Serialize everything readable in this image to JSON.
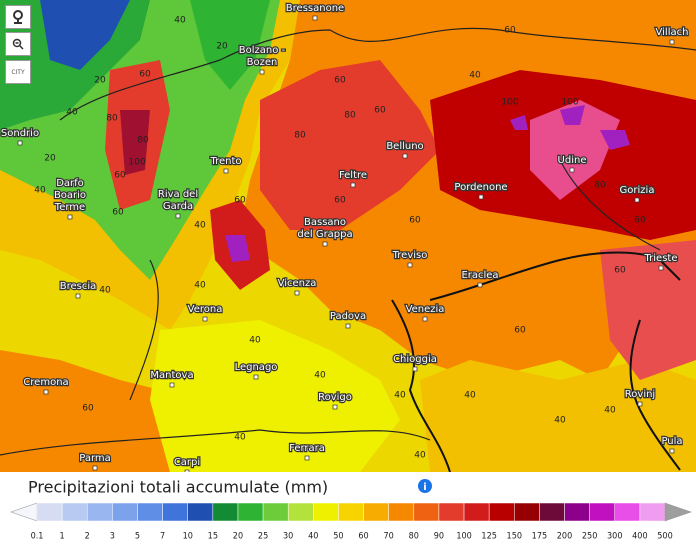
{
  "cities": [
    [
      "Bressanone"
    ],
    [
      "Villach"
    ],
    [
      "Bolzano -",
      "Bozen"
    ],
    [
      "Sondrio"
    ],
    [
      "Trento"
    ],
    [
      "Belluno"
    ],
    [
      "Udine"
    ],
    [
      "Gorizia"
    ],
    [
      "Pordenone"
    ],
    [
      "Feltre"
    ],
    [
      "Darfo",
      "Boario",
      "Terme"
    ],
    [
      "Riva del",
      "Garda"
    ],
    [
      "Bassano",
      "del Grappa"
    ],
    [
      "Treviso"
    ],
    [
      "Eraclea"
    ],
    [
      "Trieste"
    ],
    [
      "Brescia"
    ],
    [
      "Verona"
    ],
    [
      "Vicenza"
    ],
    [
      "Padova"
    ],
    [
      "Venezia"
    ],
    [
      "Chioggia"
    ],
    [
      "Legnago"
    ],
    [
      "Mantova"
    ],
    [
      "Cremona"
    ],
    [
      "Rovigo"
    ],
    [
      "Rovinj"
    ],
    [
      "Ferrara"
    ],
    [
      "Pula"
    ],
    [
      "Parma"
    ],
    [
      "Carpi"
    ]
  ],
  "contour_labels": [
    40,
    20,
    20,
    60,
    40,
    40,
    20,
    80,
    60,
    60,
    80,
    100,
    60,
    80,
    60,
    80,
    100,
    100,
    60,
    40,
    60,
    60,
    60,
    40,
    80,
    60,
    60,
    40,
    40,
    40,
    40,
    40,
    40,
    40,
    40,
    40,
    60,
    40,
    60
  ],
  "legend": {
    "title": "Precipitazioni totali accumulate (mm)",
    "ticks": [
      0.1,
      1,
      2,
      3,
      5,
      7,
      10,
      15,
      20,
      25,
      30,
      40,
      50,
      60,
      70,
      80,
      90,
      100,
      125,
      150,
      175,
      200,
      250,
      300,
      400,
      500
    ],
    "colors": [
      "#d6dcf2",
      "#b8caf2",
      "#9ab6f0",
      "#7ca2ec",
      "#5e8ee6",
      "#3f74da",
      "#1f4fb0",
      "#138a34",
      "#2fb332",
      "#6ccc3a",
      "#b4e23c",
      "#eef000",
      "#f6d400",
      "#f6ac00",
      "#f68800",
      "#ef6212",
      "#e43c2c",
      "#d21c1c",
      "#b80000",
      "#960000",
      "#6e0a3a",
      "#8c008c",
      "#c010c0",
      "#e84ee8",
      "#f09cf0",
      "#f8d4f8",
      "#d8d8d8"
    ]
  }
}
